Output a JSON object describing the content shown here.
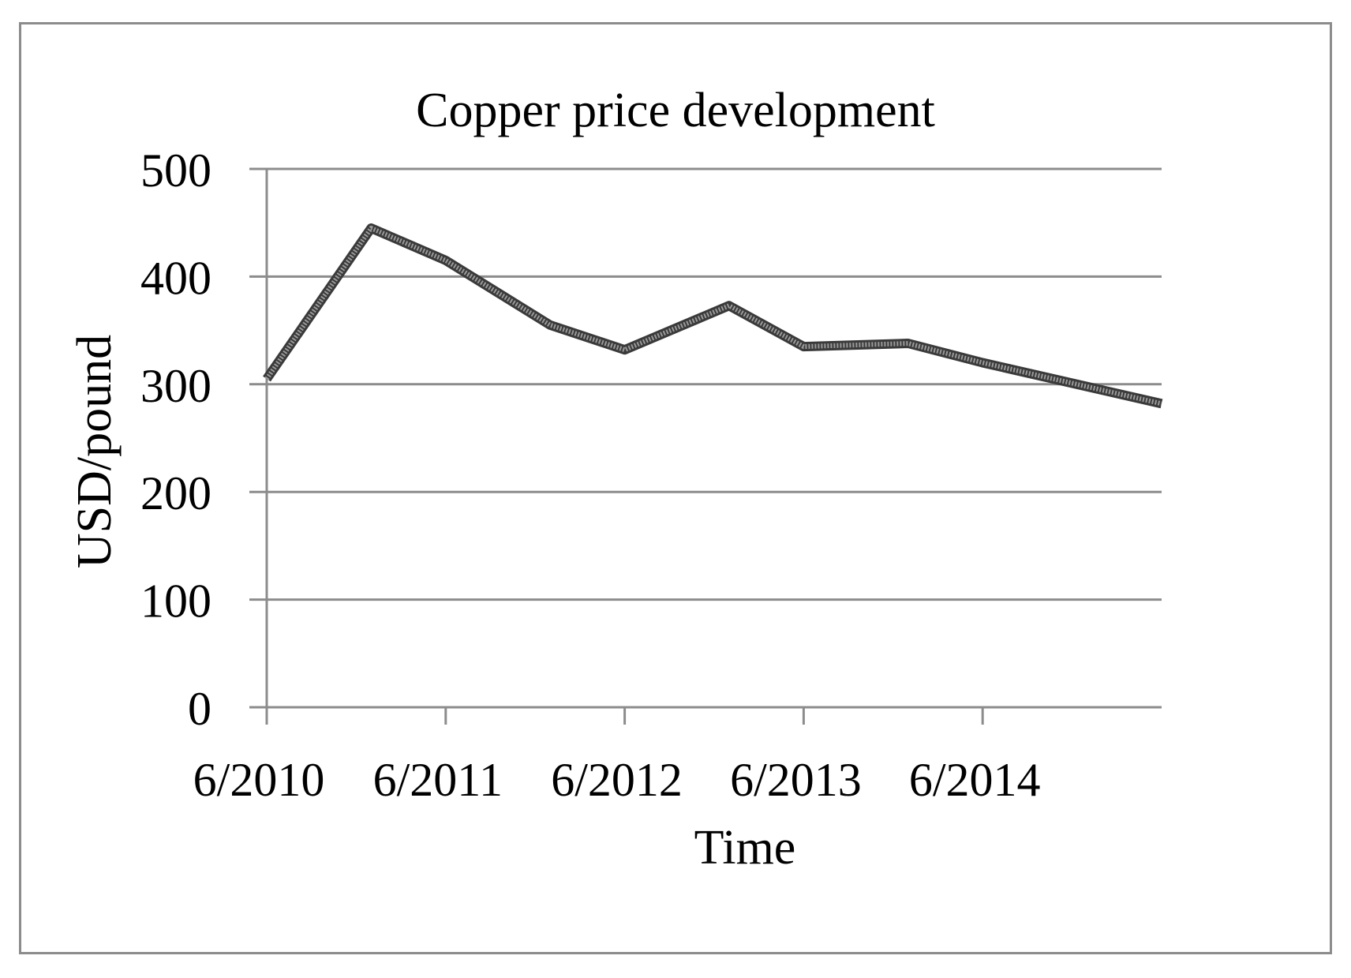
{
  "chart_data": {
    "type": "line",
    "title": "Copper price development",
    "xlabel": "Time",
    "ylabel": "USD/pound",
    "ylim": [
      0,
      500
    ],
    "yticks": [
      0,
      100,
      200,
      300,
      400,
      500
    ],
    "xlim": [
      "2010-06",
      "2015-06"
    ],
    "xticks": [
      {
        "date": "2010-06",
        "label": "6/2010"
      },
      {
        "date": "2011-06",
        "label": "6/2011"
      },
      {
        "date": "2012-06",
        "label": "6/2012"
      },
      {
        "date": "2013-06",
        "label": "6/2013"
      },
      {
        "date": "2014-06",
        "label": "6/2014"
      }
    ],
    "grid": true,
    "legend": "none",
    "series": [
      {
        "color": "#555555",
        "points": [
          {
            "x": "2010-06",
            "y": 305
          },
          {
            "x": "2011-01",
            "y": 445
          },
          {
            "x": "2011-06",
            "y": 415
          },
          {
            "x": "2012-01",
            "y": 355
          },
          {
            "x": "2012-06",
            "y": 332
          },
          {
            "x": "2013-01",
            "y": 373
          },
          {
            "x": "2013-06",
            "y": 335
          },
          {
            "x": "2014-01",
            "y": 338
          },
          {
            "x": "2014-06",
            "y": 320
          },
          {
            "x": "2015-06",
            "y": 282
          }
        ]
      }
    ]
  }
}
